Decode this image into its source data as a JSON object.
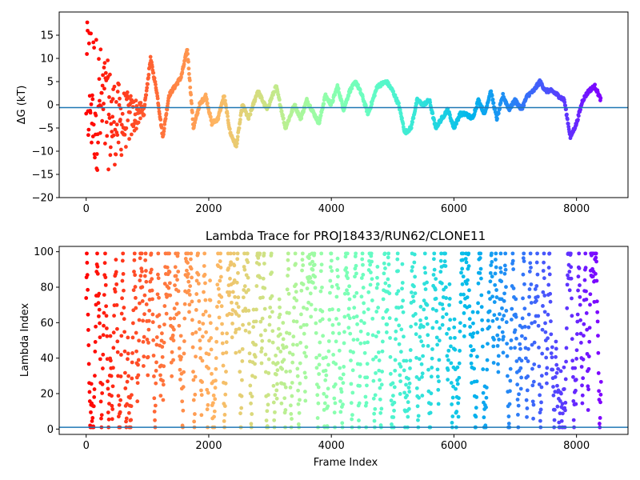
{
  "chart_data": [
    {
      "type": "scatter",
      "title": "",
      "xlabel": "",
      "ylabel": "ΔG (kT)",
      "xlim": [
        -440,
        8840
      ],
      "ylim": [
        -20,
        20
      ],
      "xticks": [
        "0",
        "2000",
        "4000",
        "6000",
        "8000"
      ],
      "yticks": [
        "−20",
        "−15",
        "−10",
        "−5",
        "0",
        "5",
        "10",
        "15"
      ],
      "hline": {
        "y": -0.6,
        "color": "#1f77b4"
      },
      "colormap": "rainbow (red at frame 0 → violet at last frame)",
      "series": [
        {
          "x": [
            0,
            100,
            200,
            400,
            600,
            800,
            950,
            1050,
            1150,
            1250,
            1350,
            1450,
            1550,
            1650,
            1750,
            1850,
            1950,
            2050,
            2150,
            2250,
            2350,
            2450,
            2550,
            2650,
            2800,
            2950,
            3100,
            3250,
            3400,
            3500,
            3600,
            3800,
            3900,
            4000,
            4100,
            4200,
            4300,
            4400,
            4500,
            4600,
            4750,
            4900,
            5000,
            5100,
            5200,
            5300,
            5400,
            5500,
            5600,
            5700,
            5800,
            5900,
            6000,
            6100,
            6200,
            6300,
            6400,
            6500,
            6600,
            6700,
            6800,
            6900,
            7000,
            7100,
            7200,
            7300,
            7400,
            7500,
            7600,
            7700,
            7800,
            7900,
            8000,
            8100,
            8200,
            8300,
            8400
          ],
          "y": [
            5,
            2,
            0,
            -3,
            -4,
            -2,
            -1,
            10,
            3,
            -7,
            2,
            4,
            6,
            12,
            -5,
            0,
            2,
            -4,
            -3,
            2,
            -6,
            -9,
            0,
            -3,
            3,
            -1,
            4,
            -5,
            0,
            -3,
            1,
            -4,
            2,
            0,
            4,
            -1,
            3,
            5,
            2,
            -2,
            4,
            5,
            3,
            0,
            -6,
            -5,
            1,
            0,
            1,
            -5,
            -3,
            -1,
            -5,
            -2,
            -2,
            -3,
            1,
            -2,
            3,
            -3,
            2,
            -1,
            1,
            -1,
            2,
            3,
            5,
            3,
            3,
            2,
            1,
            -7,
            -4,
            1,
            3,
            4,
            1
          ]
        }
      ]
    },
    {
      "type": "scatter",
      "title": "Lambda Trace for PROJ18433/RUN62/CLONE11",
      "xlabel": "Frame Index",
      "ylabel": "Lambda Index",
      "xlim": [
        -440,
        8840
      ],
      "ylim": [
        -3,
        103
      ],
      "xticks": [
        "0",
        "2000",
        "4000",
        "6000",
        "8000"
      ],
      "yticks": [
        "0",
        "20",
        "40",
        "60",
        "80",
        "100"
      ],
      "hline": {
        "y": 1,
        "color": "#1f77b4"
      },
      "colormap": "rainbow (red at frame 0 → violet at last frame)",
      "series": [
        {
          "x_range": [
            0,
            8400
          ],
          "y_range": [
            1,
            99
          ],
          "n_frames": 1680
        }
      ]
    }
  ]
}
